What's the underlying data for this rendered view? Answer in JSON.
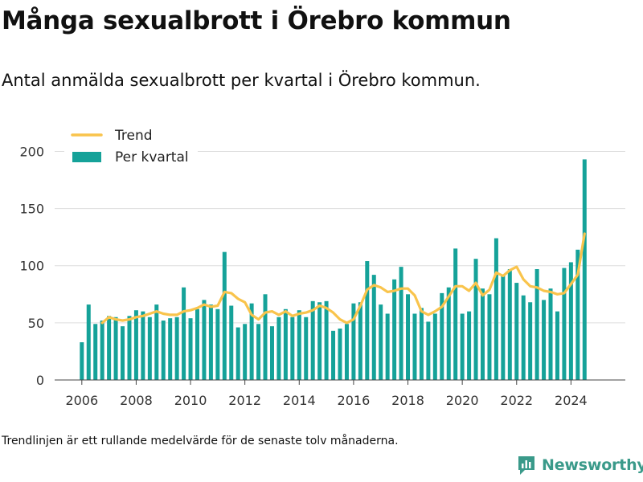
{
  "title": "Många sexualbrott i Örebro kommun",
  "subtitle": "Antal anmälda sexualbrott per kvartal i Örebro kommun.",
  "note": "Trendlinjen är ett rullande medelvärde för de senaste tolv månaderna.",
  "brand": {
    "name": "Newsworthy",
    "icon": "newsworthy-logo-icon"
  },
  "colors": {
    "bar": "#15a299",
    "trend": "#f9c44c",
    "grid": "#dddddd",
    "text": "#333333"
  },
  "chart_data": {
    "type": "bar",
    "xlim": [
      2005,
      2026
    ],
    "ylim": [
      0,
      220
    ],
    "x_ticks": [
      "2006",
      "2008",
      "2010",
      "2012",
      "2014",
      "2016",
      "2018",
      "2020",
      "2022",
      "2024"
    ],
    "y_ticks": [
      "0",
      "50",
      "100",
      "150",
      "200"
    ],
    "grid": "horizontal",
    "legend": {
      "placement": "top-left",
      "entries": [
        "Trend",
        "Per kvartal"
      ]
    },
    "series": [
      {
        "name": "Per kvartal",
        "type": "bar",
        "x": [
          2006.0,
          2006.25,
          2006.5,
          2006.75,
          2007.0,
          2007.25,
          2007.5,
          2007.75,
          2008.0,
          2008.25,
          2008.5,
          2008.75,
          2009.0,
          2009.25,
          2009.5,
          2009.75,
          2010.0,
          2010.25,
          2010.5,
          2010.75,
          2011.0,
          2011.25,
          2011.5,
          2011.75,
          2012.0,
          2012.25,
          2012.5,
          2012.75,
          2013.0,
          2013.25,
          2013.5,
          2013.75,
          2014.0,
          2014.25,
          2014.5,
          2014.75,
          2015.0,
          2015.25,
          2015.5,
          2015.75,
          2016.0,
          2016.25,
          2016.5,
          2016.75,
          2017.0,
          2017.25,
          2017.5,
          2017.75,
          2018.0,
          2018.25,
          2018.5,
          2018.75,
          2019.0,
          2019.25,
          2019.5,
          2019.75,
          2020.0,
          2020.25,
          2020.5,
          2020.75,
          2021.0,
          2021.25,
          2021.5,
          2021.75,
          2022.0,
          2022.25,
          2022.5,
          2022.75,
          2023.0,
          2023.25,
          2023.5,
          2023.75,
          2024.0,
          2024.25,
          2024.5
        ],
        "values": [
          33,
          66,
          49,
          52,
          56,
          55,
          47,
          56,
          61,
          60,
          55,
          66,
          52,
          54,
          55,
          81,
          54,
          62,
          70,
          66,
          62,
          112,
          65,
          46,
          49,
          67,
          49,
          75,
          47,
          55,
          62,
          55,
          61,
          55,
          69,
          68,
          69,
          43,
          45,
          49,
          67,
          68,
          104,
          92,
          66,
          58,
          88,
          99,
          75,
          58,
          63,
          51,
          58,
          76,
          81,
          115,
          58,
          60,
          106,
          80,
          75,
          124,
          91,
          97,
          85,
          74,
          68,
          97,
          70,
          80,
          60,
          98,
          103,
          114,
          193
        ]
      },
      {
        "name": "Trend",
        "type": "line",
        "x": [
          2006.75,
          2007.0,
          2007.25,
          2007.5,
          2007.75,
          2008.0,
          2008.25,
          2008.5,
          2008.75,
          2009.0,
          2009.25,
          2009.5,
          2009.75,
          2010.0,
          2010.25,
          2010.5,
          2010.75,
          2011.0,
          2011.25,
          2011.5,
          2011.75,
          2012.0,
          2012.25,
          2012.5,
          2012.75,
          2013.0,
          2013.25,
          2013.5,
          2013.75,
          2014.0,
          2014.25,
          2014.5,
          2014.75,
          2015.0,
          2015.25,
          2015.5,
          2015.75,
          2016.0,
          2016.25,
          2016.5,
          2016.75,
          2017.0,
          2017.25,
          2017.5,
          2017.75,
          2018.0,
          2018.25,
          2018.5,
          2018.75,
          2019.0,
          2019.25,
          2019.5,
          2019.75,
          2020.0,
          2020.25,
          2020.5,
          2020.75,
          2021.0,
          2021.25,
          2021.5,
          2021.75,
          2022.0,
          2022.25,
          2022.5,
          2022.75,
          2023.0,
          2023.25,
          2023.5,
          2023.75,
          2024.0,
          2024.25,
          2024.5
        ],
        "values": [
          50,
          55,
          53,
          52,
          53,
          55,
          56,
          58,
          60,
          58,
          57,
          57,
          60,
          61,
          63,
          66,
          64,
          65,
          77,
          76,
          71,
          68,
          57,
          53,
          59,
          60,
          57,
          60,
          56,
          58,
          59,
          61,
          65,
          63,
          59,
          53,
          50,
          53,
          65,
          79,
          83,
          81,
          77,
          78,
          80,
          80,
          74,
          60,
          57,
          60,
          64,
          73,
          82,
          82,
          78,
          85,
          74,
          79,
          94,
          91,
          96,
          99,
          88,
          82,
          81,
          78,
          77,
          75,
          76,
          84,
          92,
          128
        ]
      }
    ]
  }
}
